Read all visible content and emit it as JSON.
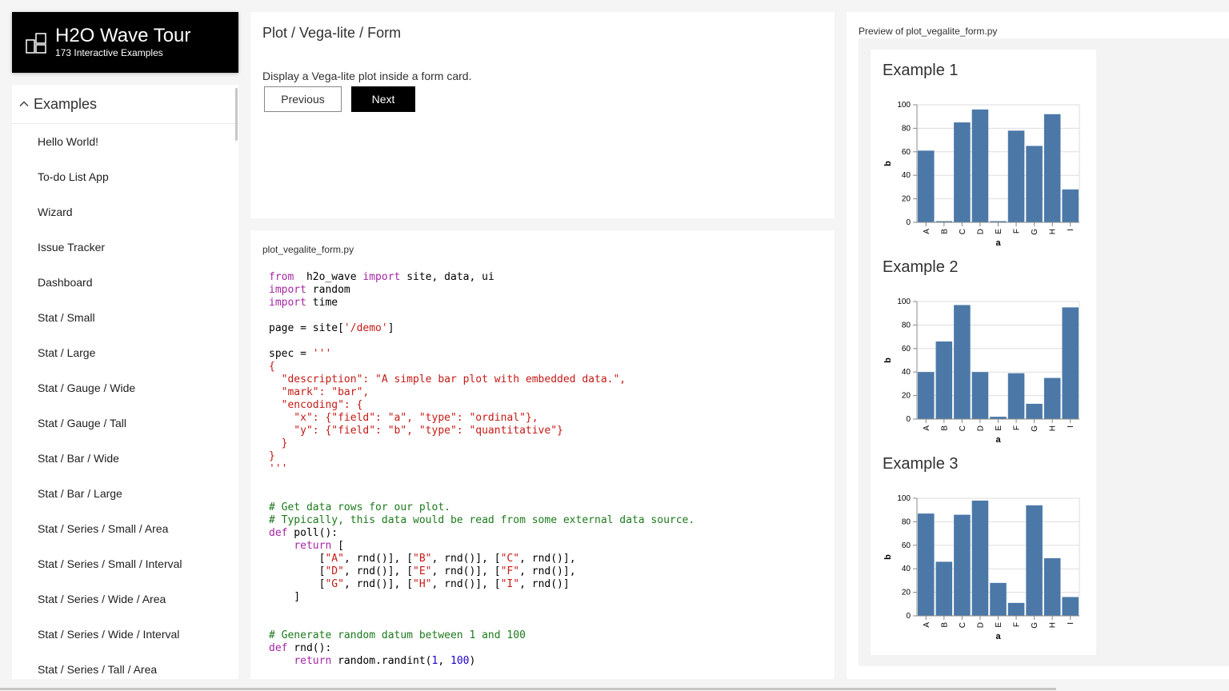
{
  "header": {
    "title": "H2O Wave Tour",
    "subtitle": "173 Interactive Examples",
    "logo_icon": "grid-logo-icon"
  },
  "nav": {
    "group_title": "Examples",
    "items": [
      "Hello World!",
      "To-do List App",
      "Wizard",
      "Issue Tracker",
      "Dashboard",
      "Stat / Small",
      "Stat / Large",
      "Stat / Gauge / Wide",
      "Stat / Gauge / Tall",
      "Stat / Bar / Wide",
      "Stat / Bar / Large",
      "Stat / Series / Small / Area",
      "Stat / Series / Small / Interval",
      "Stat / Series / Wide / Area",
      "Stat / Series / Wide / Interval",
      "Stat / Series / Tall / Area"
    ]
  },
  "info": {
    "title": "Plot / Vega-lite / Form",
    "description": "Display a Vega-lite plot inside a form card.",
    "prev_label": "Previous",
    "next_label": "Next"
  },
  "code": {
    "filename": "plot_vegalite_form.py",
    "lines": [
      [
        [
          "kw",
          "from"
        ],
        [
          "",
          "  h2o_wave "
        ],
        [
          "kw",
          "import"
        ],
        [
          "",
          " site, data, ui"
        ]
      ],
      [
        [
          "kw",
          "import"
        ],
        [
          "",
          " random"
        ]
      ],
      [
        [
          "kw",
          "import"
        ],
        [
          "",
          " time"
        ]
      ],
      [],
      [
        [
          "",
          "page = site["
        ],
        [
          "st",
          "'/demo'"
        ],
        [
          "",
          "]"
        ]
      ],
      [],
      [
        [
          "",
          "spec = "
        ],
        [
          "st",
          "'''"
        ]
      ],
      [
        [
          "st",
          "{"
        ]
      ],
      [
        [
          "st",
          "  \"description\": \"A simple bar plot with embedded data.\","
        ]
      ],
      [
        [
          "st",
          "  \"mark\": \"bar\","
        ]
      ],
      [
        [
          "st",
          "  \"encoding\": {"
        ]
      ],
      [
        [
          "st",
          "    \"x\": {\"field\": \"a\", \"type\": \"ordinal\"},"
        ]
      ],
      [
        [
          "st",
          "    \"y\": {\"field\": \"b\", \"type\": \"quantitative\"}"
        ]
      ],
      [
        [
          "st",
          "  }"
        ]
      ],
      [
        [
          "st",
          "}"
        ]
      ],
      [
        [
          "st",
          "'''"
        ]
      ],
      [],
      [],
      [
        [
          "cm",
          "# Get data rows for our plot."
        ]
      ],
      [
        [
          "cm",
          "# Typically, this data would be read from some external data source."
        ]
      ],
      [
        [
          "kw",
          "def"
        ],
        [
          "",
          " poll():"
        ]
      ],
      [
        [
          "",
          "    "
        ],
        [
          "kw",
          "return"
        ],
        [
          "",
          " ["
        ]
      ],
      [
        [
          "",
          "        ["
        ],
        [
          "st",
          "\"A\""
        ],
        [
          "",
          ", rnd()], ["
        ],
        [
          "st",
          "\"B\""
        ],
        [
          "",
          ", rnd()], ["
        ],
        [
          "st",
          "\"C\""
        ],
        [
          "",
          ", rnd()],"
        ]
      ],
      [
        [
          "",
          "        ["
        ],
        [
          "st",
          "\"D\""
        ],
        [
          "",
          ", rnd()], ["
        ],
        [
          "st",
          "\"E\""
        ],
        [
          "",
          ", rnd()], ["
        ],
        [
          "st",
          "\"F\""
        ],
        [
          "",
          ", rnd()],"
        ]
      ],
      [
        [
          "",
          "        ["
        ],
        [
          "st",
          "\"G\""
        ],
        [
          "",
          ", rnd()], ["
        ],
        [
          "st",
          "\"H\""
        ],
        [
          "",
          ", rnd()], ["
        ],
        [
          "st",
          "\"I\""
        ],
        [
          "",
          ", rnd()]"
        ]
      ],
      [
        [
          "",
          "    ]"
        ]
      ],
      [],
      [],
      [
        [
          "cm",
          "# Generate random datum between 1 and 100"
        ]
      ],
      [
        [
          "kw",
          "def"
        ],
        [
          "",
          " rnd():"
        ]
      ],
      [
        [
          "",
          "    "
        ],
        [
          "kw",
          "return"
        ],
        [
          "",
          " random.randint("
        ],
        [
          "nm",
          "1"
        ],
        [
          "",
          ", "
        ],
        [
          "nm",
          "100"
        ],
        [
          "",
          ")"
        ]
      ]
    ]
  },
  "preview": {
    "label": "Preview of plot_vegalite_form.py",
    "bar_color": "#4c78a8"
  },
  "chart_data": [
    {
      "type": "bar",
      "title": "Example 1",
      "categories": [
        "A",
        "B",
        "C",
        "D",
        "E",
        "F",
        "G",
        "H",
        "I"
      ],
      "values": [
        61,
        1,
        85,
        96,
        1,
        78,
        65,
        92,
        28
      ],
      "xlabel": "a",
      "ylabel": "b",
      "ylim": [
        0,
        100
      ],
      "yticks": [
        0,
        20,
        40,
        60,
        80,
        100
      ],
      "grid": true
    },
    {
      "type": "bar",
      "title": "Example 2",
      "categories": [
        "A",
        "B",
        "C",
        "D",
        "E",
        "F",
        "G",
        "H",
        "I"
      ],
      "values": [
        40,
        66,
        97,
        40,
        2,
        39,
        13,
        35,
        95
      ],
      "xlabel": "a",
      "ylabel": "b",
      "ylim": [
        0,
        100
      ],
      "yticks": [
        0,
        20,
        40,
        60,
        80,
        100
      ],
      "grid": true
    },
    {
      "type": "bar",
      "title": "Example 3",
      "categories": [
        "A",
        "B",
        "C",
        "D",
        "E",
        "F",
        "G",
        "H",
        "I"
      ],
      "values": [
        87,
        46,
        86,
        98,
        28,
        11,
        94,
        49,
        16
      ],
      "xlabel": "a",
      "ylabel": "b",
      "ylim": [
        0,
        100
      ],
      "yticks": [
        0,
        20,
        40,
        60,
        80,
        100
      ],
      "grid": true
    }
  ]
}
